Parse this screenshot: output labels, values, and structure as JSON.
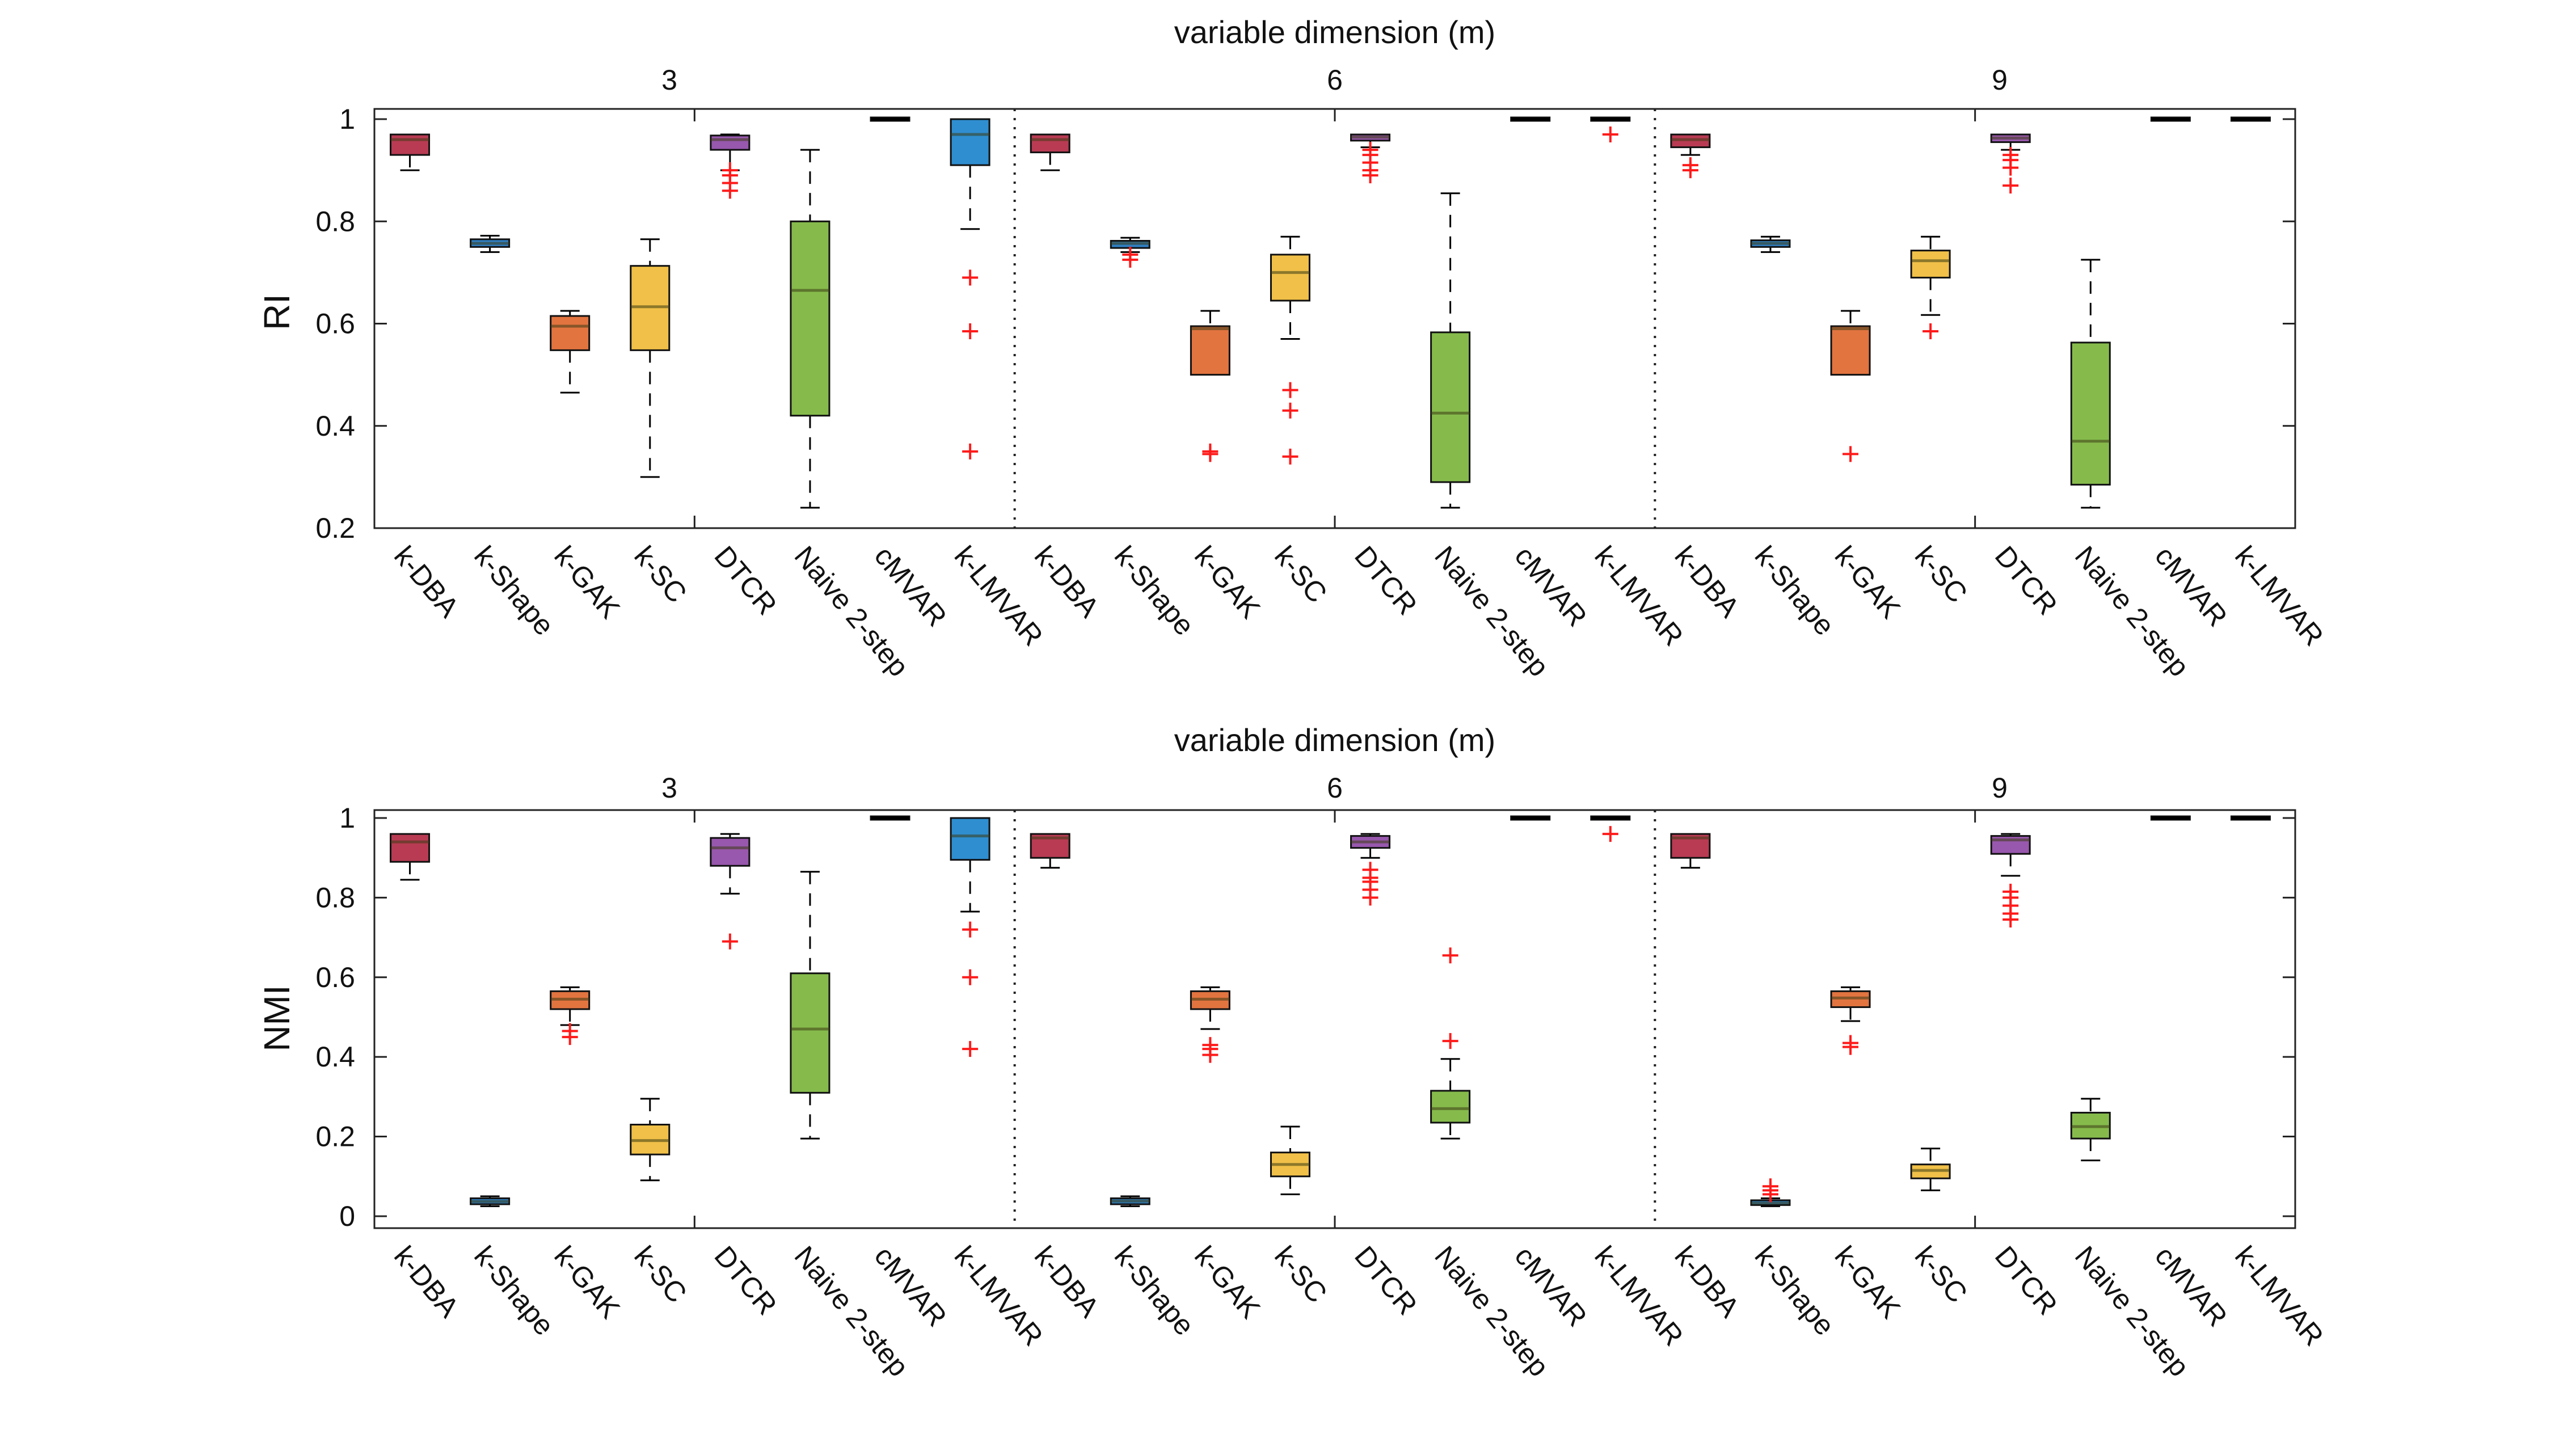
{
  "colors": {
    "k-DBA": "#b83b53",
    "k-Shape": "#2f7fc3",
    "k-GAK": "#e27440",
    "k-SC": "#f0c048",
    "DTCR": "#9858ad",
    "Naive 2-step": "#86bb4c",
    "cMVAR": "#2f7fc3",
    "k-LMVAR": "#2f8ed0",
    "outlier": "#ff1a1a"
  },
  "chart_data": [
    {
      "type": "boxplot",
      "id": "ri",
      "title": "variable dimension (m)",
      "ylabel": "RI",
      "ylim": [
        0.2,
        1.02
      ],
      "yticks": [
        0.2,
        0.4,
        0.6,
        0.8,
        1
      ],
      "ytick_labels": [
        "0.2",
        "0.4",
        "0.6",
        "0.8",
        "1"
      ],
      "methods": [
        "k-DBA",
        "k-Shape",
        "k-GAK",
        "k-SC",
        "DTCR",
        "Naive 2-step",
        "cMVAR",
        "k-LMVAR"
      ],
      "groups": [
        {
          "label": "3",
          "boxes": [
            {
              "method": "k-DBA",
              "q1": 0.93,
              "median": 0.96,
              "q3": 0.97,
              "wlo": 0.9,
              "whi": 0.97,
              "outliers": []
            },
            {
              "method": "k-Shape",
              "q1": 0.75,
              "median": 0.757,
              "q3": 0.765,
              "wlo": 0.74,
              "whi": 0.772,
              "outliers": []
            },
            {
              "method": "k-GAK",
              "q1": 0.548,
              "median": 0.595,
              "q3": 0.615,
              "wlo": 0.465,
              "whi": 0.625,
              "outliers": []
            },
            {
              "method": "k-SC",
              "q1": 0.548,
              "median": 0.633,
              "q3": 0.713,
              "wlo": 0.3,
              "whi": 0.765,
              "outliers": []
            },
            {
              "method": "DTCR",
              "q1": 0.94,
              "median": 0.96,
              "q3": 0.968,
              "wlo": 0.9,
              "whi": 0.97,
              "outliers": [
                0.86,
                0.875,
                0.89,
                0.9
              ]
            },
            {
              "method": "Naive 2-step",
              "q1": 0.42,
              "median": 0.665,
              "q3": 0.8,
              "wlo": 0.24,
              "whi": 0.94,
              "outliers": []
            },
            {
              "method": "cMVAR",
              "q1": 1.0,
              "median": 1.0,
              "q3": 1.0,
              "wlo": 1.0,
              "whi": 1.0,
              "outliers": []
            },
            {
              "method": "k-LMVAR",
              "q1": 0.91,
              "median": 0.97,
              "q3": 1.0,
              "wlo": 0.785,
              "whi": 1.0,
              "outliers": [
                0.35,
                0.585,
                0.69
              ]
            }
          ]
        },
        {
          "label": "6",
          "boxes": [
            {
              "method": "k-DBA",
              "q1": 0.935,
              "median": 0.96,
              "q3": 0.97,
              "wlo": 0.9,
              "whi": 0.97,
              "outliers": []
            },
            {
              "method": "k-Shape",
              "q1": 0.748,
              "median": 0.757,
              "q3": 0.762,
              "wlo": 0.74,
              "whi": 0.768,
              "outliers": [
                0.725,
                0.735
              ]
            },
            {
              "method": "k-GAK",
              "q1": 0.5,
              "median": 0.59,
              "q3": 0.595,
              "wlo": 0.5,
              "whi": 0.625,
              "outliers": [
                0.345,
                0.35
              ]
            },
            {
              "method": "k-SC",
              "q1": 0.645,
              "median": 0.7,
              "q3": 0.735,
              "wlo": 0.57,
              "whi": 0.77,
              "outliers": [
                0.34,
                0.43,
                0.47
              ]
            },
            {
              "method": "DTCR",
              "q1": 0.958,
              "median": 0.965,
              "q3": 0.97,
              "wlo": 0.945,
              "whi": 0.97,
              "outliers": [
                0.89,
                0.9,
                0.915,
                0.93,
                0.94
              ]
            },
            {
              "method": "Naive 2-step",
              "q1": 0.29,
              "median": 0.425,
              "q3": 0.583,
              "wlo": 0.24,
              "whi": 0.855,
              "outliers": []
            },
            {
              "method": "cMVAR",
              "q1": 1.0,
              "median": 1.0,
              "q3": 1.0,
              "wlo": 1.0,
              "whi": 1.0,
              "outliers": []
            },
            {
              "method": "k-LMVAR",
              "q1": 1.0,
              "median": 1.0,
              "q3": 1.0,
              "wlo": 1.0,
              "whi": 1.0,
              "outliers": [
                0.97
              ]
            }
          ]
        },
        {
          "label": "9",
          "boxes": [
            {
              "method": "k-DBA",
              "q1": 0.945,
              "median": 0.96,
              "q3": 0.97,
              "wlo": 0.93,
              "whi": 0.97,
              "outliers": [
                0.9,
                0.91
              ]
            },
            {
              "method": "k-Shape",
              "q1": 0.75,
              "median": 0.757,
              "q3": 0.763,
              "wlo": 0.74,
              "whi": 0.77,
              "outliers": []
            },
            {
              "method": "k-GAK",
              "q1": 0.5,
              "median": 0.59,
              "q3": 0.595,
              "wlo": 0.5,
              "whi": 0.625,
              "outliers": [
                0.345
              ]
            },
            {
              "method": "k-SC",
              "q1": 0.69,
              "median": 0.723,
              "q3": 0.743,
              "wlo": 0.617,
              "whi": 0.77,
              "outliers": [
                0.585
              ]
            },
            {
              "method": "DTCR",
              "q1": 0.955,
              "median": 0.963,
              "q3": 0.97,
              "wlo": 0.94,
              "whi": 0.97,
              "outliers": [
                0.87,
                0.905,
                0.92,
                0.93
              ]
            },
            {
              "method": "Naive 2-step",
              "q1": 0.285,
              "median": 0.37,
              "q3": 0.563,
              "wlo": 0.24,
              "whi": 0.725,
              "outliers": []
            },
            {
              "method": "cMVAR",
              "q1": 1.0,
              "median": 1.0,
              "q3": 1.0,
              "wlo": 1.0,
              "whi": 1.0,
              "outliers": []
            },
            {
              "method": "k-LMVAR",
              "q1": 1.0,
              "median": 1.0,
              "q3": 1.0,
              "wlo": 1.0,
              "whi": 1.0,
              "outliers": []
            }
          ]
        }
      ]
    },
    {
      "type": "boxplot",
      "id": "nmi",
      "title": "variable dimension (m)",
      "ylabel": "NMI",
      "ylim": [
        -0.03,
        1.02
      ],
      "yticks": [
        0,
        0.2,
        0.4,
        0.6,
        0.8,
        1
      ],
      "ytick_labels": [
        "0",
        "0.2",
        "0.4",
        "0.6",
        "0.8",
        "1"
      ],
      "methods": [
        "k-DBA",
        "k-Shape",
        "k-GAK",
        "k-SC",
        "DTCR",
        "Naive 2-step",
        "cMVAR",
        "k-LMVAR"
      ],
      "groups": [
        {
          "label": "3",
          "boxes": [
            {
              "method": "k-DBA",
              "q1": 0.89,
              "median": 0.94,
              "q3": 0.96,
              "wlo": 0.845,
              "whi": 0.96,
              "outliers": []
            },
            {
              "method": "k-Shape",
              "q1": 0.03,
              "median": 0.037,
              "q3": 0.045,
              "wlo": 0.025,
              "whi": 0.05,
              "outliers": []
            },
            {
              "method": "k-GAK",
              "q1": 0.52,
              "median": 0.545,
              "q3": 0.565,
              "wlo": 0.48,
              "whi": 0.575,
              "outliers": [
                0.45,
                0.465
              ]
            },
            {
              "method": "k-SC",
              "q1": 0.155,
              "median": 0.19,
              "q3": 0.23,
              "wlo": 0.09,
              "whi": 0.295,
              "outliers": []
            },
            {
              "method": "DTCR",
              "q1": 0.88,
              "median": 0.925,
              "q3": 0.95,
              "wlo": 0.81,
              "whi": 0.96,
              "outliers": [
                0.69
              ]
            },
            {
              "method": "Naive 2-step",
              "q1": 0.31,
              "median": 0.47,
              "q3": 0.61,
              "wlo": 0.195,
              "whi": 0.865,
              "outliers": []
            },
            {
              "method": "cMVAR",
              "q1": 1.0,
              "median": 1.0,
              "q3": 1.0,
              "wlo": 1.0,
              "whi": 1.0,
              "outliers": []
            },
            {
              "method": "k-LMVAR",
              "q1": 0.895,
              "median": 0.955,
              "q3": 1.0,
              "wlo": 0.765,
              "whi": 1.0,
              "outliers": [
                0.42,
                0.6,
                0.72
              ]
            }
          ]
        },
        {
          "label": "6",
          "boxes": [
            {
              "method": "k-DBA",
              "q1": 0.9,
              "median": 0.95,
              "q3": 0.96,
              "wlo": 0.875,
              "whi": 0.96,
              "outliers": []
            },
            {
              "method": "k-Shape",
              "q1": 0.03,
              "median": 0.038,
              "q3": 0.045,
              "wlo": 0.025,
              "whi": 0.05,
              "outliers": []
            },
            {
              "method": "k-GAK",
              "q1": 0.52,
              "median": 0.545,
              "q3": 0.565,
              "wlo": 0.47,
              "whi": 0.575,
              "outliers": [
                0.405,
                0.42,
                0.43
              ]
            },
            {
              "method": "k-SC",
              "q1": 0.1,
              "median": 0.13,
              "q3": 0.16,
              "wlo": 0.055,
              "whi": 0.225,
              "outliers": []
            },
            {
              "method": "DTCR",
              "q1": 0.925,
              "median": 0.94,
              "q3": 0.955,
              "wlo": 0.9,
              "whi": 0.96,
              "outliers": [
                0.8,
                0.82,
                0.84,
                0.85,
                0.87
              ]
            },
            {
              "method": "Naive 2-step",
              "q1": 0.235,
              "median": 0.27,
              "q3": 0.315,
              "wlo": 0.195,
              "whi": 0.395,
              "outliers": [
                0.44,
                0.655
              ]
            },
            {
              "method": "cMVAR",
              "q1": 1.0,
              "median": 1.0,
              "q3": 1.0,
              "wlo": 1.0,
              "whi": 1.0,
              "outliers": []
            },
            {
              "method": "k-LMVAR",
              "q1": 1.0,
              "median": 1.0,
              "q3": 1.0,
              "wlo": 1.0,
              "whi": 1.0,
              "outliers": [
                0.96
              ]
            }
          ]
        },
        {
          "label": "9",
          "boxes": [
            {
              "method": "k-DBA",
              "q1": 0.9,
              "median": 0.95,
              "q3": 0.96,
              "wlo": 0.875,
              "whi": 0.96,
              "outliers": []
            },
            {
              "method": "k-Shape",
              "q1": 0.028,
              "median": 0.033,
              "q3": 0.04,
              "wlo": 0.025,
              "whi": 0.045,
              "outliers": [
                0.055,
                0.065,
                0.075
              ]
            },
            {
              "method": "k-GAK",
              "q1": 0.525,
              "median": 0.548,
              "q3": 0.565,
              "wlo": 0.49,
              "whi": 0.575,
              "outliers": [
                0.425,
                0.435
              ]
            },
            {
              "method": "k-SC",
              "q1": 0.095,
              "median": 0.115,
              "q3": 0.13,
              "wlo": 0.065,
              "whi": 0.17,
              "outliers": []
            },
            {
              "method": "DTCR",
              "q1": 0.91,
              "median": 0.945,
              "q3": 0.955,
              "wlo": 0.855,
              "whi": 0.96,
              "outliers": [
                0.745,
                0.76,
                0.78,
                0.8,
                0.815
              ]
            },
            {
              "method": "Naive 2-step",
              "q1": 0.195,
              "median": 0.225,
              "q3": 0.26,
              "wlo": 0.14,
              "whi": 0.295,
              "outliers": []
            },
            {
              "method": "cMVAR",
              "q1": 1.0,
              "median": 1.0,
              "q3": 1.0,
              "wlo": 1.0,
              "whi": 1.0,
              "outliers": []
            },
            {
              "method": "k-LMVAR",
              "q1": 1.0,
              "median": 1.0,
              "q3": 1.0,
              "wlo": 1.0,
              "whi": 1.0,
              "outliers": []
            }
          ]
        }
      ]
    }
  ]
}
